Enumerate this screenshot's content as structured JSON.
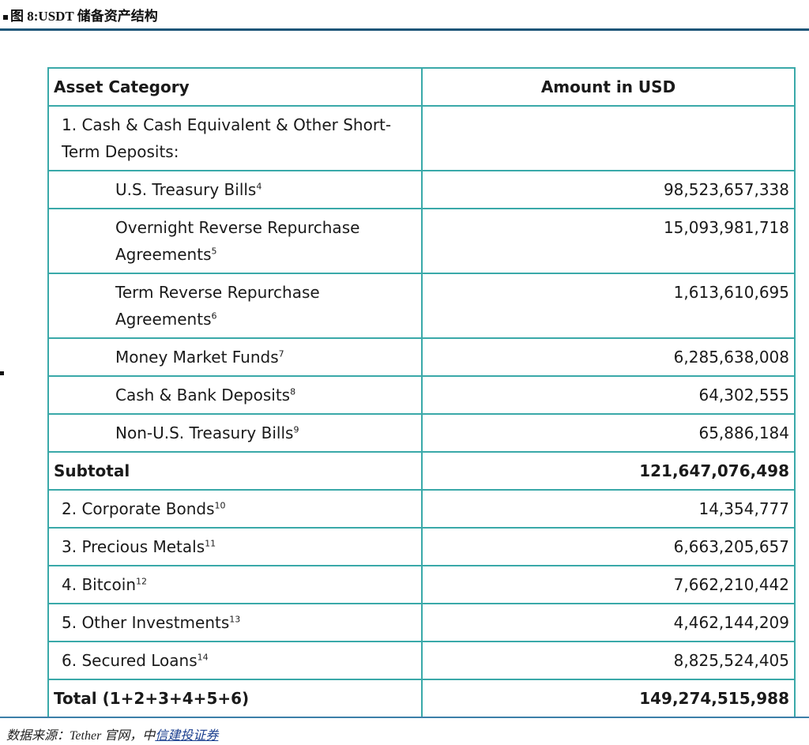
{
  "title": "图 8:USDT 储备资产结构",
  "table": {
    "headers": [
      "Asset Category",
      "Amount in USD"
    ],
    "rows": [
      {
        "label": "1.  Cash & Cash Equivalent & Other Short-Term Deposits:",
        "note": "",
        "amount": "",
        "style": "ind1"
      },
      {
        "label": "U.S. Treasury Bills",
        "note": "4",
        "amount": "98,523,657,338",
        "style": "ind2"
      },
      {
        "label": "Overnight Reverse Repurchase Agreements",
        "note": "5",
        "amount": "15,093,981,718",
        "style": "ind2"
      },
      {
        "label": "Term Reverse Repurchase Agreements",
        "note": "6",
        "amount": "1,613,610,695",
        "style": "ind2"
      },
      {
        "label": "Money Market Funds",
        "note": "7",
        "amount": "6,285,638,008",
        "style": "ind2"
      },
      {
        "label": "Cash & Bank Deposits",
        "note": "8",
        "amount": "64,302,555",
        "style": "ind2"
      },
      {
        "label": "Non-U.S. Treasury Bills",
        "note": "9",
        "amount": "65,886,184",
        "style": "ind2"
      },
      {
        "label": "Subtotal",
        "note": "",
        "amount": "121,647,076,498",
        "style": "bold"
      },
      {
        "label": "2.  Corporate Bonds",
        "note": "10",
        "amount": "14,354,777",
        "style": "ind1"
      },
      {
        "label": "3.  Precious Metals",
        "note": "11",
        "amount": "6,663,205,657",
        "style": "ind1"
      },
      {
        "label": "4.  Bitcoin",
        "note": "12",
        "amount": "7,662,210,442",
        "style": "ind1"
      },
      {
        "label": "5.  Other Investments",
        "note": "13",
        "amount": "4,462,144,209",
        "style": "ind1"
      },
      {
        "label": "6.  Secured Loans",
        "note": "14",
        "amount": "8,825,524,405",
        "style": "ind1"
      },
      {
        "label": "Total (1+2+3+4+5+6)",
        "note": "",
        "amount": "149,274,515,988",
        "style": "bold"
      }
    ]
  },
  "source": {
    "prefix": "数据来源：Tether 官网，中",
    "link": "信建投证券"
  },
  "colors": {
    "border": "#3aa9a9",
    "rule": "#1d5678"
  }
}
